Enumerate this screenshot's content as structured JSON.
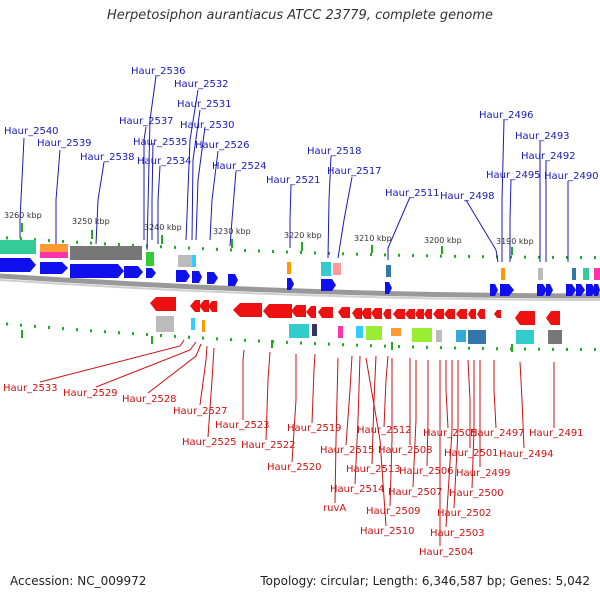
{
  "title": "Herpetosiphon aurantiacus ATCC 23779, complete genome",
  "accession": "Accession: NC_009972",
  "topology": "Topology: circular; Length: 6,346,587 bp; Genes: 5,042",
  "colors": {
    "forward_label": "#1a1ab8",
    "reverse_label": "#cc1111",
    "forward_gene": "#1010ee",
    "reverse_gene": "#ee1111",
    "scale_tick": "#22aa22",
    "backbone": "#888888"
  },
  "kbp_labels": [
    "3260 kbp",
    "3250 kbp",
    "3240 kbp",
    "3230 kbp",
    "3220 kbp",
    "3210 kbp",
    "3200 kbp",
    "3190 kbp"
  ],
  "forward_labels": [
    "Haur_2536",
    "Haur_2532",
    "Haur_2531",
    "Haur_2537",
    "Haur_2530",
    "Haur_2540",
    "Haur_2535",
    "Haur_2539",
    "Haur_2526",
    "Haur_2538",
    "Haur_2534",
    "Haur_2524",
    "Haur_2518",
    "Haur_2521",
    "Haur_2517",
    "Haur_2511",
    "Haur_2498",
    "Haur_2496",
    "Haur_2493",
    "Haur_2492",
    "Haur_2495",
    "Haur_2490"
  ],
  "reverse_labels": [
    "Haur_2533",
    "Haur_2529",
    "Haur_2528",
    "Haur_2527",
    "Haur_2525",
    "Haur_2523",
    "Haur_2522",
    "Haur_2519",
    "Haur_2520",
    "Haur_2515",
    "Haur_2512",
    "Haur_2513",
    "Haur_2514",
    "ruvA",
    "Haur_2508",
    "Haur_2505",
    "Haur_2506",
    "Haur_2507",
    "Haur_2509",
    "Haur_2510",
    "Haur_2501",
    "Haur_2497",
    "Haur_2491",
    "Haur_2494",
    "Haur_2499",
    "Haur_2500",
    "Haur_2502",
    "Haur_2503",
    "Haur_2504"
  ]
}
